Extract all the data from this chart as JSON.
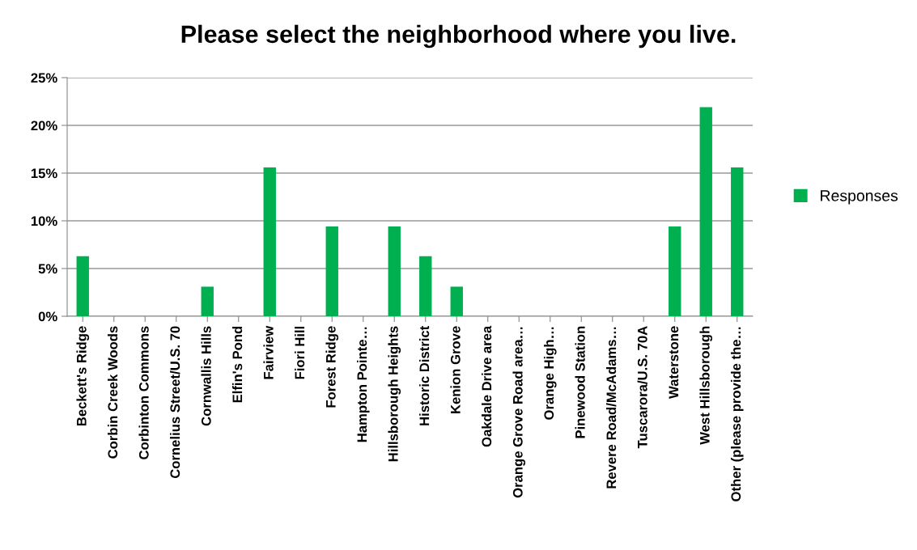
{
  "chart_data": {
    "type": "bar",
    "title": "Please select the neighborhood where you live.",
    "categories": [
      "Beckett's Ridge",
      "Corbin Creek Woods",
      "Corbinton Commons",
      "Cornelius Street/U.S. 70",
      "Cornwallis Hills",
      "Elfin's Pond",
      "Fairview",
      "Fiori Hill",
      "Forest Ridge",
      "Hampton Pointe…",
      "Hillsborough Heights",
      "Historic District",
      "Kenion Grove",
      "Oakdale Drive area",
      "Orange Grove Road area…",
      "Orange High…",
      "Pinewood Station",
      "Revere Road/McAdams…",
      "Tuscarora/U.S. 70A",
      "Waterstone",
      "West Hillsborough",
      "Other (please provide the…"
    ],
    "series": [
      {
        "name": "Responses",
        "color": "#00b050",
        "values": [
          6.3,
          0,
          0,
          0,
          3.1,
          0,
          15.6,
          0,
          9.4,
          0,
          9.4,
          6.3,
          3.1,
          0,
          0,
          0,
          0,
          0,
          0,
          9.4,
          21.9,
          15.6
        ]
      }
    ],
    "ylim": [
      0,
      25
    ],
    "yticks": [
      {
        "value": 0,
        "label": "0%"
      },
      {
        "value": 5,
        "label": "5%"
      },
      {
        "value": 10,
        "label": "10%"
      },
      {
        "value": 15,
        "label": "15%"
      },
      {
        "value": 20,
        "label": "20%"
      },
      {
        "value": 25,
        "label": "25%"
      }
    ],
    "grid": "y",
    "legend": "right"
  }
}
